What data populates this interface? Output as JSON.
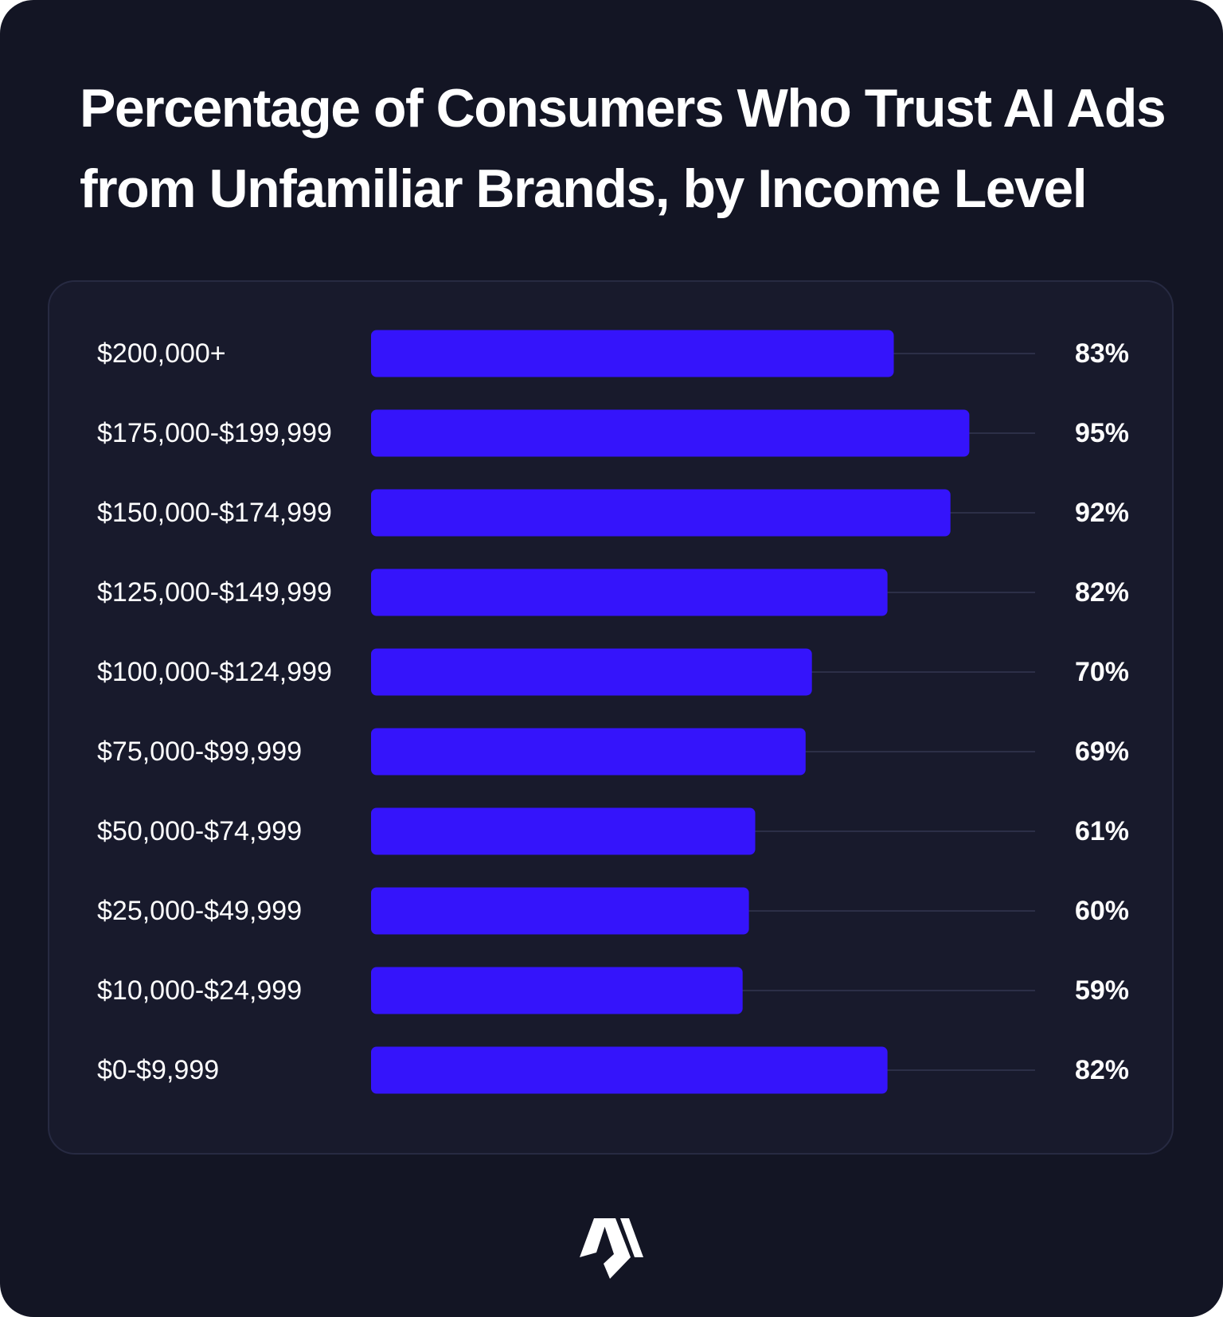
{
  "chart_data": {
    "type": "bar",
    "orientation": "horizontal",
    "title": "Percentage of Consumers Who Trust AI Ads from Unfamiliar Brands, by Income Level",
    "categories": [
      "$200,000+",
      "$175,000-$199,999",
      "$150,000-$174,999",
      "$125,000-$149,999",
      "$100,000-$124,999",
      "$75,000-$99,999",
      "$50,000-$74,999",
      "$25,000-$49,999",
      "$10,000-$24,999",
      "$0-$9,999"
    ],
    "values": [
      83,
      95,
      92,
      82,
      70,
      69,
      61,
      60,
      59,
      82
    ],
    "value_labels": [
      "83%",
      "95%",
      "92%",
      "82%",
      "70%",
      "69%",
      "61%",
      "60%",
      "59%",
      "82%"
    ],
    "xlim": [
      0,
      100
    ],
    "unit": "%",
    "xlabel": "",
    "ylabel": ""
  },
  "colors": {
    "background": "#131524",
    "panel": "#181a2c",
    "bar": "#3514fb",
    "track_line": "#2c2f47",
    "text": "#ffffff"
  },
  "logo": {
    "icon": "brand-logo-icon"
  }
}
